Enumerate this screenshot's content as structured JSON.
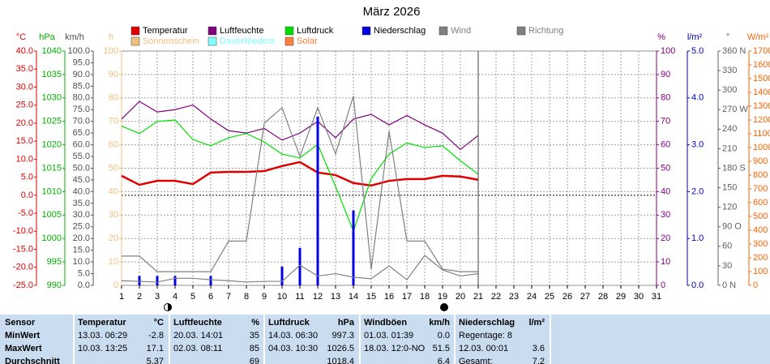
{
  "chart_data": {
    "type": "line",
    "title": "März 2026",
    "xlim": [
      1,
      31
    ],
    "xticks": [
      1,
      2,
      3,
      4,
      5,
      6,
      7,
      8,
      9,
      10,
      11,
      12,
      13,
      14,
      15,
      16,
      17,
      18,
      19,
      20,
      21,
      22,
      23,
      24,
      25,
      26,
      27,
      28,
      29,
      30,
      31
    ],
    "x": [
      1,
      2,
      3,
      4,
      5,
      6,
      7,
      8,
      9,
      10,
      11,
      12,
      13,
      14,
      15,
      16,
      17,
      18,
      19,
      20,
      21
    ],
    "grid": true,
    "axes": [
      {
        "label": "°C",
        "color": "#e00000",
        "lim": [
          -25,
          40
        ],
        "ticks": [
          {
            "value": 40,
            "label": "40.0"
          },
          {
            "value": 35,
            "label": "35.0"
          },
          {
            "value": 30,
            "label": "30.0"
          },
          {
            "value": 25,
            "label": "25.0"
          },
          {
            "value": 20,
            "label": "20.0"
          },
          {
            "value": 15,
            "label": "15.0"
          },
          {
            "value": 10,
            "label": "10.0"
          },
          {
            "value": 5,
            "label": "5.0"
          },
          {
            "value": 0,
            "label": "0.0"
          },
          {
            "value": -5,
            "label": "-5.0"
          },
          {
            "value": -10,
            "label": "-10.0"
          },
          {
            "value": -15,
            "label": "-15.0"
          },
          {
            "value": -20,
            "label": "-20.0"
          },
          {
            "value": -25,
            "label": "-25.0"
          }
        ]
      },
      {
        "label": "hPa",
        "color": "#00b000",
        "lim": [
          990,
          1040
        ],
        "ticks": [
          1040,
          1035,
          1030,
          1025,
          1020,
          1015,
          1010,
          1005,
          1000,
          995,
          990
        ]
      },
      {
        "label": "km/h",
        "color": "#505050",
        "lim": [
          0,
          100
        ],
        "ticks": [
          {
            "value": 100,
            "label": "100.0"
          },
          {
            "value": 95,
            "label": "95.0"
          },
          {
            "value": 90,
            "label": "90.0"
          },
          {
            "value": 85,
            "label": "85.0"
          },
          {
            "value": 80,
            "label": "80.0"
          },
          {
            "value": 75,
            "label": "75.0"
          },
          {
            "value": 70,
            "label": "70.0"
          },
          {
            "value": 65,
            "label": "65.0"
          },
          {
            "value": 60,
            "label": "60.0"
          },
          {
            "value": 55,
            "label": "55.0"
          },
          {
            "value": 50,
            "label": "50.0"
          },
          {
            "value": 45,
            "label": "45.0"
          },
          {
            "value": 40,
            "label": "40.0"
          },
          {
            "value": 35,
            "label": "35.0"
          },
          {
            "value": 30,
            "label": "30.0"
          },
          {
            "value": 25,
            "label": "25.0"
          },
          {
            "value": 20,
            "label": "20.0"
          },
          {
            "value": 15,
            "label": "15.0"
          },
          {
            "value": 10,
            "label": "10.0"
          },
          {
            "value": 5,
            "label": "5.0"
          },
          {
            "value": 0,
            "label": "0.0"
          }
        ]
      },
      {
        "label": "h",
        "color": "#f0c080",
        "lim": [
          0,
          100
        ],
        "ticks": [
          100,
          90,
          80,
          70,
          60,
          50,
          40,
          30,
          20,
          10,
          0
        ]
      },
      {
        "label": "%",
        "color": "#800080",
        "lim": [
          0,
          100
        ],
        "ticks": [
          100,
          90,
          80,
          70,
          60,
          50,
          40,
          30,
          20,
          10,
          0
        ]
      },
      {
        "label": "l/m²",
        "color": "#0000c0",
        "lim": [
          0,
          5
        ],
        "ticks": [
          {
            "value": 5,
            "label": "5.0"
          },
          {
            "value": 4,
            "label": "4.0"
          },
          {
            "value": 3,
            "label": "3.0"
          },
          {
            "value": 2,
            "label": "2.0"
          },
          {
            "value": 1,
            "label": "1.0"
          },
          {
            "value": 0,
            "label": "0.0"
          }
        ]
      },
      {
        "label": "°",
        "color": "#606060",
        "lim": [
          0,
          360
        ],
        "ticks": [
          {
            "value": 360,
            "label": "360 N"
          },
          330,
          300,
          {
            "value": 270,
            "label": "270 W"
          },
          240,
          210,
          {
            "value": 180,
            "label": "180 S"
          },
          150,
          120,
          {
            "value": 90,
            "label": "90 O"
          },
          60,
          30,
          {
            "value": 0,
            "label": "0 N"
          }
        ]
      },
      {
        "label": "W/m²",
        "color": "#ff6000",
        "lim": [
          0,
          1700
        ],
        "ticks": [
          1700,
          1600,
          1500,
          1400,
          1300,
          1200,
          1100,
          1000,
          900,
          800,
          700,
          600,
          500,
          400,
          300,
          200,
          100,
          0
        ]
      }
    ],
    "series": [
      {
        "name": "Temperatur",
        "color": "#e00000",
        "axis": 0,
        "values": [
          5.4,
          2.9,
          4.0,
          4.0,
          3.1,
          6.3,
          6.5,
          6.5,
          6.7,
          8.1,
          9.2,
          6.3,
          5.6,
          3.4,
          2.7,
          4.0,
          4.5,
          4.5,
          5.4,
          5.2,
          4.3
        ]
      },
      {
        "name": "Luftfeuchte",
        "color": "#800080",
        "axis": 4,
        "values": [
          71,
          78.5,
          74,
          75,
          77,
          71,
          66,
          65,
          67,
          62,
          65,
          70,
          63,
          71,
          73,
          68.5,
          72.5,
          68.5,
          65,
          58,
          64
        ]
      },
      {
        "name": "Luftdruck",
        "color": "#00e000",
        "axis": 1,
        "values": [
          1024,
          1022.4,
          1025,
          1025.3,
          1021.1,
          1019.8,
          1021.5,
          1022.4,
          1020.6,
          1018,
          1017.2,
          1020.1,
          1011.1,
          1001.6,
          1012.8,
          1018,
          1020.4,
          1019.4,
          1019.8,
          1016.6,
          1013.7
        ]
      },
      {
        "name": "Niederschlag",
        "color": "#0000e0",
        "axis": 5,
        "type": "bar",
        "values": [
          0,
          0.2,
          0.2,
          0.2,
          0,
          0.2,
          0,
          0,
          0,
          0.4,
          0.8,
          3.6,
          0,
          1.6,
          0,
          0,
          0,
          0,
          0,
          0,
          0
        ]
      },
      {
        "name": "Wind",
        "color": "#808080",
        "axis": 2,
        "values": [
          2,
          1.7,
          1.4,
          3,
          3,
          2.4,
          2,
          1.4,
          1.7,
          1.7,
          8.6,
          4,
          5,
          3.5,
          2.8,
          8.3,
          2.4,
          12.8,
          6.6,
          4,
          5
        ]
      },
      {
        "name": "Richtung",
        "color": "#808080",
        "axis": 6,
        "values": [
          45,
          45,
          21,
          21,
          21,
          21,
          68,
          68,
          249,
          273,
          198,
          273,
          202,
          291,
          25,
          237,
          68,
          68,
          25,
          21,
          21
        ]
      }
    ],
    "legend_extra": [
      {
        "name": "Sonnenschein",
        "color": "#f0c080"
      },
      {
        "name": "DauerNieders",
        "color": "#80ffff"
      },
      {
        "name": "Solar",
        "color": "#ff8040"
      }
    ]
  },
  "table": {
    "header": [
      {
        "name": "Sensor"
      },
      {
        "name": "Temperatur",
        "unit": "°C"
      },
      {
        "name": "Luftfeuchte",
        "unit": "%"
      },
      {
        "name": "Luftdruck",
        "unit": "hPa"
      },
      {
        "name": "Windböen",
        "unit": "km/h"
      },
      {
        "name": "Niederschlag",
        "unit": "l/m²"
      }
    ],
    "rows": [
      {
        "label": "MinWert",
        "cells": [
          {
            "date": "13.03. 06:29",
            "value": "-2.8"
          },
          {
            "date": "20.03. 14:01",
            "value": "35"
          },
          {
            "date": "14.03. 06:30",
            "value": "997.3"
          },
          {
            "date": "01.03. 01:39",
            "value": "0.0"
          },
          {
            "date": "Regentage: 8"
          }
        ]
      },
      {
        "label": "MaxWert",
        "cells": [
          {
            "date": "10.03. 13:25",
            "value": "17.1"
          },
          {
            "date": "02.03. 08:11",
            "value": "85"
          },
          {
            "date": "04.03. 10:30",
            "value": "1026.5"
          },
          {
            "date": "18.03. 12:0-NO",
            "value": "51.5"
          },
          {
            "date": "12.03. 00:01",
            "value": "3.6"
          }
        ]
      },
      {
        "label": "Durchschnitt",
        "cells": [
          {
            "value": "5.37"
          },
          {
            "value": "69"
          },
          {
            "value": "1018.4"
          },
          {
            "value": "6.4"
          },
          {
            "date": "Gesamt:",
            "value": "7.2"
          }
        ]
      }
    ]
  }
}
